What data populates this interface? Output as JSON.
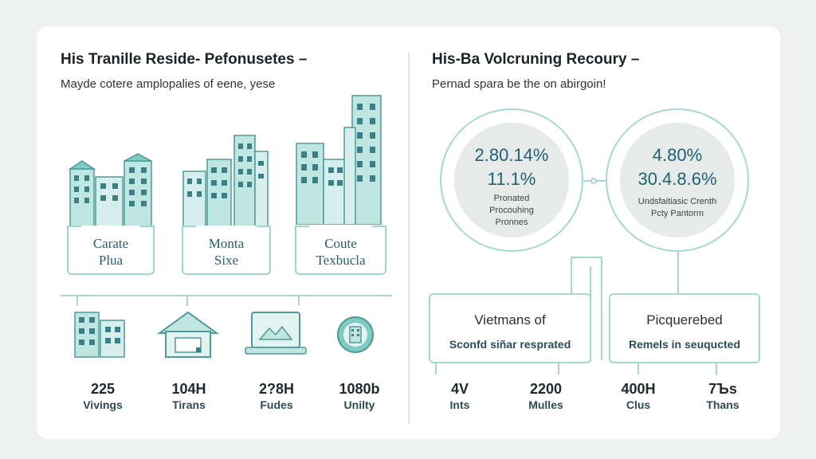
{
  "left": {
    "title": "His Tranille Reside- Pefonusetes –",
    "subtitle": "Mayde cotere amplopalies of eene, yese",
    "categories": [
      {
        "line1": "Carate",
        "line2": "Plua"
      },
      {
        "line1": "Monta",
        "line2": "Sixe"
      },
      {
        "line1": "Coute",
        "line2": "Texbucla"
      }
    ],
    "stats": [
      {
        "value": "225",
        "label": "Vivings",
        "icon": "apartment-building-icon"
      },
      {
        "value": "104H",
        "label": "Tirans",
        "icon": "house-icon"
      },
      {
        "value": "2?8H",
        "label": "Fudes",
        "icon": "laptop-handshake-icon"
      },
      {
        "value": "1080b",
        "label": "Unilty",
        "icon": "globe-building-icon"
      }
    ]
  },
  "right": {
    "title": "His-Ba Volcruning Recoury –",
    "subtitle": "Pernad spara be the on abirgoin!",
    "circles": [
      {
        "pct1": "2.80.14%",
        "pct2": "11.1%",
        "line1": "Pronated",
        "line2": "Procouhing",
        "line3": "Pronnes"
      },
      {
        "pct1": "4.80%",
        "pct2": "30.4.8.6%",
        "line1": "Undsfaitiasic Crenth",
        "line2": "Pcty Pantorm"
      }
    ],
    "panels": [
      {
        "line1": "Vietmans of",
        "line2": "Sconfd siñar resprated"
      },
      {
        "line1": "Picquerebed",
        "line2": "Remels in seuqucted"
      }
    ],
    "stats": [
      {
        "value": "4V",
        "label": "Ints"
      },
      {
        "value": "2200",
        "label": "Mulles"
      },
      {
        "value": "400H",
        "label": "Clus"
      },
      {
        "value": "7Ъs",
        "label": "Thans"
      }
    ]
  },
  "colors": {
    "accent": "#7fcac3",
    "accent_dark": "#2a5e6a",
    "line": "#a6d8d2"
  }
}
